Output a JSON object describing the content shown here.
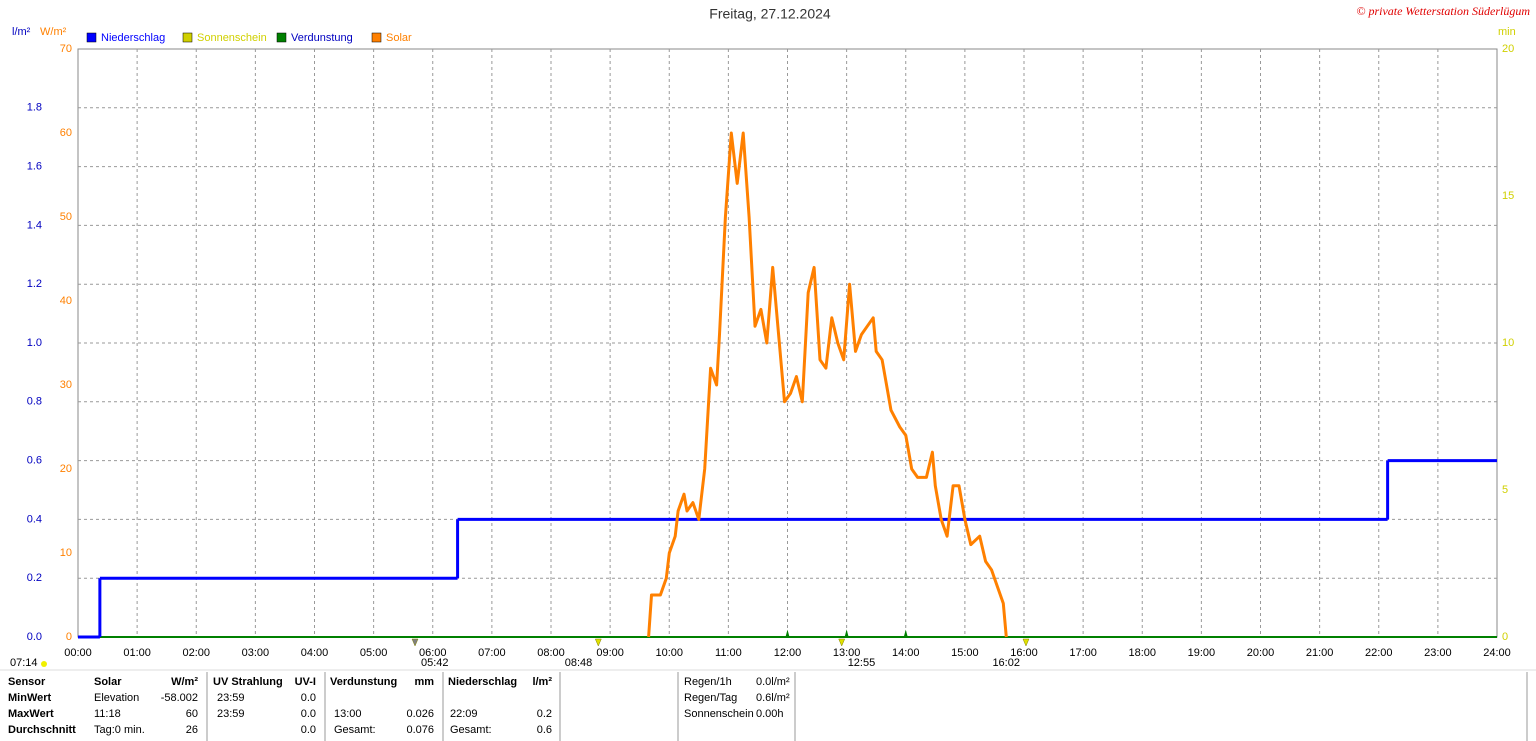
{
  "chart_data": {
    "type": "line",
    "title": "Freitag, 27.12.2024",
    "copyright": "© private Wetterstation Süderlügum",
    "y_label": "l/m²",
    "y2_label": "W/m²",
    "y3_label": "min",
    "xlim": [
      0,
      24
    ],
    "xticks": [
      {
        "value": 0,
        "label": "00:00"
      },
      {
        "value": 1,
        "label": "01:00"
      },
      {
        "value": 2,
        "label": "02:00"
      },
      {
        "value": 3,
        "label": "03:00"
      },
      {
        "value": 4,
        "label": "04:00"
      },
      {
        "value": 5,
        "label": "05:00"
      },
      {
        "value": 6,
        "label": "06:00"
      },
      {
        "value": 7,
        "label": "07:00"
      },
      {
        "value": 8,
        "label": "08:00"
      },
      {
        "value": 9,
        "label": "09:00"
      },
      {
        "value": 10,
        "label": "10:00"
      },
      {
        "value": 11,
        "label": "11:00"
      },
      {
        "value": 12,
        "label": "12:00"
      },
      {
        "value": 13,
        "label": "13:00"
      },
      {
        "value": 14,
        "label": "14:00"
      },
      {
        "value": 15,
        "label": "15:00"
      },
      {
        "value": 16,
        "label": "16:00"
      },
      {
        "value": 17,
        "label": "17:00"
      },
      {
        "value": 18,
        "label": "18:00"
      },
      {
        "value": 19,
        "label": "19:00"
      },
      {
        "value": 20,
        "label": "20:00"
      },
      {
        "value": 21,
        "label": "21:00"
      },
      {
        "value": 22,
        "label": "22:00"
      },
      {
        "value": 23,
        "label": "23:00"
      },
      {
        "value": 24,
        "label": "24:00"
      }
    ],
    "ylim": [
      0,
      2
    ],
    "yticks": [
      {
        "value": 0,
        "label": "0.0"
      },
      {
        "value": 0.2,
        "label": "0.2"
      },
      {
        "value": 0.4,
        "label": "0.4"
      },
      {
        "value": 0.6,
        "label": "0.6"
      },
      {
        "value": 0.8,
        "label": "0.8"
      },
      {
        "value": 1,
        "label": "1.0"
      },
      {
        "value": 1.2,
        "label": "1.2"
      },
      {
        "value": 1.4,
        "label": "1.4"
      },
      {
        "value": 1.6,
        "label": "1.6"
      },
      {
        "value": 1.8,
        "label": "1.8"
      }
    ],
    "y2lim": [
      0,
      70
    ],
    "y2ticks": [
      0,
      10,
      20,
      30,
      40,
      50,
      60,
      70
    ],
    "y3lim": [
      0,
      20
    ],
    "y3ticks": [
      0,
      5,
      10,
      15,
      20
    ],
    "grid": true,
    "series": [
      {
        "name": "Niederschlag",
        "color": "#0000ff",
        "label_color": "#0000ff",
        "axis": "y",
        "step": true,
        "x": [
          0,
          0.37,
          6.42,
          22.15
        ],
        "values": [
          0,
          0.2,
          0.4,
          0.6
        ]
      },
      {
        "name": "Sonnenschein",
        "color": "#d0d000",
        "label_color": "#d0d000",
        "axis": "y3",
        "x": [],
        "values": []
      },
      {
        "name": "Verdunstung",
        "color": "#008000",
        "label_color": "#0000c0",
        "axis": "y",
        "spikes": true,
        "x": [
          12,
          13,
          14
        ],
        "values": [
          0.025,
          0.026,
          0.025
        ]
      },
      {
        "name": "Solar",
        "color": "#ff8000",
        "label_color": "#ff8000",
        "axis": "y2",
        "x": [
          9.65,
          9.7,
          9.85,
          9.95,
          10.0,
          10.1,
          10.15,
          10.25,
          10.3,
          10.4,
          10.5,
          10.6,
          10.7,
          10.8,
          10.85,
          10.95,
          11.05,
          11.15,
          11.25,
          11.35,
          11.45,
          11.55,
          11.65,
          11.75,
          11.85,
          11.95,
          12.05,
          12.15,
          12.25,
          12.35,
          12.45,
          12.55,
          12.65,
          12.75,
          12.85,
          12.95,
          13.05,
          13.15,
          13.25,
          13.35,
          13.45,
          13.5,
          13.6,
          13.75,
          13.9,
          14.0,
          14.1,
          14.2,
          14.35,
          14.45,
          14.5,
          14.6,
          14.7,
          14.8,
          14.9,
          15.0,
          15.1,
          15.25,
          15.35,
          15.45,
          15.55,
          15.65,
          15.7
        ],
        "values": [
          0,
          5,
          5,
          7,
          10,
          12,
          15,
          17,
          15,
          16,
          14,
          20,
          32,
          30,
          36,
          50,
          60,
          54,
          60,
          50,
          37,
          39,
          35,
          44,
          36,
          28,
          29,
          31,
          28,
          41,
          44,
          33,
          32,
          38,
          35,
          33,
          42,
          34,
          36,
          37,
          38,
          34,
          33,
          27,
          25,
          24,
          20,
          19,
          19,
          22,
          18,
          14,
          12,
          18,
          18,
          14,
          11,
          12,
          9,
          8,
          6,
          4,
          0
        ]
      }
    ],
    "day_length": "07:14",
    "events": [
      {
        "value": 5.7,
        "label": "05:42",
        "color": "#808080"
      },
      {
        "value": 8.8,
        "label": "08:48",
        "color": "#e0e000"
      },
      {
        "value": 12.9167,
        "label": "12:55",
        "color": "#e0e000"
      },
      {
        "value": 16.0333,
        "label": "16:02",
        "color": "#e0e000"
      }
    ]
  },
  "table": {
    "header": [
      "Sensor",
      "Solar",
      "W/m²",
      "UV Strahlung",
      "UV-I",
      "Verdunstung",
      "mm",
      "Niederschlag",
      "l/m²"
    ],
    "rows": [
      {
        "label": "MinWert",
        "cells": [
          "Elevation",
          "-58.002",
          "23:59",
          "0.0",
          null,
          null,
          null,
          null
        ]
      },
      {
        "label": "MaxWert",
        "cells": [
          "11:18",
          "60",
          "23:59",
          "0.0",
          "13:00",
          "0.026",
          "22:09",
          "0.2"
        ]
      },
      {
        "label": "Durchschnitt",
        "cells": [
          "Tag:0 min.",
          "26",
          null,
          "0.0",
          "Gesamt:",
          "0.076",
          "Gesamt:",
          "0.6"
        ]
      }
    ]
  },
  "summary": [
    {
      "label": "Regen/1h",
      "value": "0.0l/m²"
    },
    {
      "label": "Regen/Tag",
      "value": "0.6l/m²"
    },
    {
      "label": "Sonnenschein",
      "value": "0.00h"
    }
  ]
}
